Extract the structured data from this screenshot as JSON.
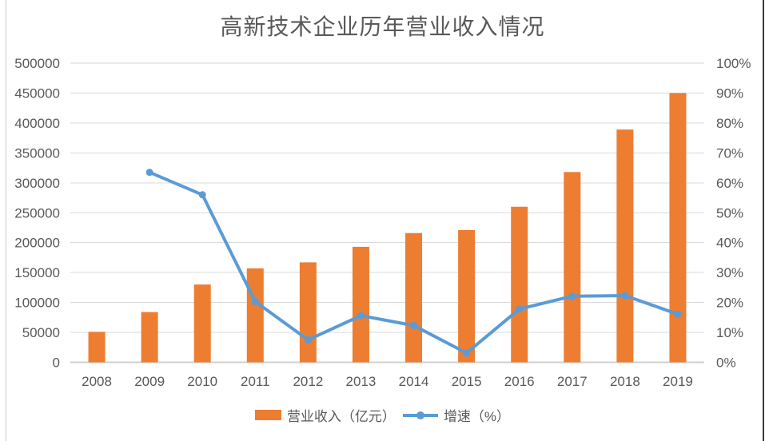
{
  "title": "高新技术企业历年营业收入情况",
  "chart_data": {
    "type": "bar+line",
    "title": "高新技术企业历年营业收入情况",
    "categories": [
      "2008",
      "2009",
      "2010",
      "2011",
      "2012",
      "2013",
      "2014",
      "2015",
      "2016",
      "2017",
      "2018",
      "2019"
    ],
    "series": [
      {
        "name": "营业收入（亿元）",
        "type": "bar",
        "axis": "left",
        "color": "#ED7D31",
        "values": [
          51000,
          84000,
          130000,
          157000,
          167000,
          193000,
          216000,
          221000,
          260000,
          318000,
          389000,
          450000
        ]
      },
      {
        "name": "增速（%）",
        "type": "line",
        "axis": "right",
        "color": "#5B9BD5",
        "values": [
          null,
          63.5,
          56,
          20.3,
          7.5,
          15.6,
          12.3,
          3.1,
          17.8,
          22.1,
          22.3,
          16.1
        ]
      }
    ],
    "left_axis": {
      "min": 0,
      "max": 500000,
      "step": 50000,
      "ticks": [
        "500000",
        "450000",
        "400000",
        "350000",
        "300000",
        "250000",
        "200000",
        "150000",
        "100000",
        "50000",
        "0"
      ]
    },
    "right_axis": {
      "min": 0,
      "max": 100,
      "step": 10,
      "suffix": "%",
      "ticks": [
        "100%",
        "90%",
        "80%",
        "70%",
        "60%",
        "50%",
        "40%",
        "30%",
        "20%",
        "10%",
        "0%"
      ]
    },
    "grid": true,
    "legend_position": "bottom"
  },
  "colors": {
    "bar": "#ED7D31",
    "line": "#5B9BD5",
    "gridline": "#D9D9D9",
    "axis_line": "#CFCFCF",
    "text": "#595959"
  }
}
